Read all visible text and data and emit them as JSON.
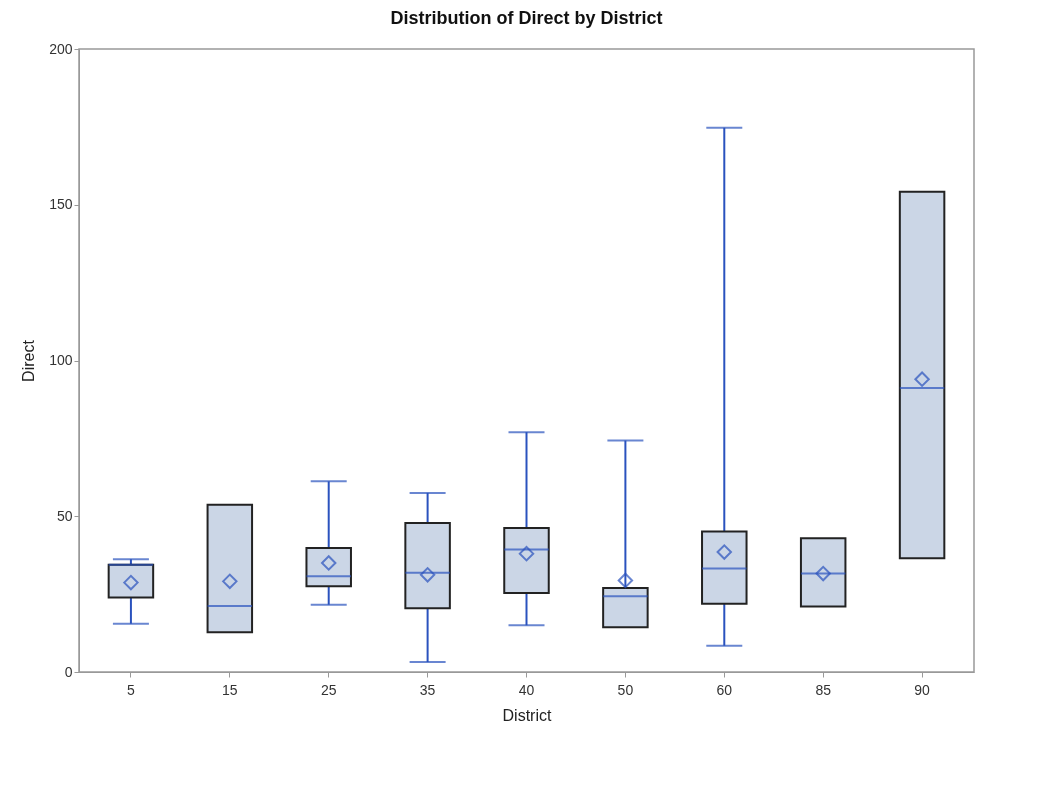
{
  "chart_data": {
    "type": "box",
    "title": "Distribution of Direct by District",
    "xlabel": "District",
    "ylabel": "Direct",
    "categories": [
      "5",
      "15",
      "25",
      "35",
      "40",
      "50",
      "60",
      "85",
      "90"
    ],
    "boxes": [
      {
        "low": 15.5,
        "q1": 23.9,
        "median": 34.4,
        "q3": 34.4,
        "high": 36.2,
        "mean": 28.7
      },
      {
        "low": 12.8,
        "q1": 12.8,
        "median": 21.2,
        "q3": 53.7,
        "high": 53.7,
        "mean": 29.1
      },
      {
        "low": 21.6,
        "q1": 27.5,
        "median": 30.7,
        "q3": 39.8,
        "high": 61.2,
        "mean": 35
      },
      {
        "low": 3.2,
        "q1": 20.5,
        "median": 31.9,
        "q3": 47.8,
        "high": 57.5,
        "mean": 31.2
      },
      {
        "low": 15,
        "q1": 25.4,
        "median": 39.3,
        "q3": 46.2,
        "high": 77,
        "mean": 38
      },
      {
        "low": 14.4,
        "q1": 14.4,
        "median": 24.3,
        "q3": 27,
        "high": 74.3,
        "mean": 29.4
      },
      {
        "low": 8.4,
        "q1": 21.9,
        "median": 33.2,
        "q3": 45.1,
        "high": 174.7,
        "mean": 38.5
      },
      {
        "low": 21,
        "q1": 21,
        "median": 31.6,
        "q3": 42.9,
        "high": 42.9,
        "mean": 31.6
      },
      {
        "low": 36.5,
        "q1": 36.5,
        "median": 91.2,
        "q3": 154.2,
        "high": 154.2,
        "mean": 94
      }
    ],
    "color": "#cbd6e6",
    "ylim": [
      0,
      200
    ],
    "yticks": [
      0,
      50,
      100,
      150,
      200
    ]
  }
}
